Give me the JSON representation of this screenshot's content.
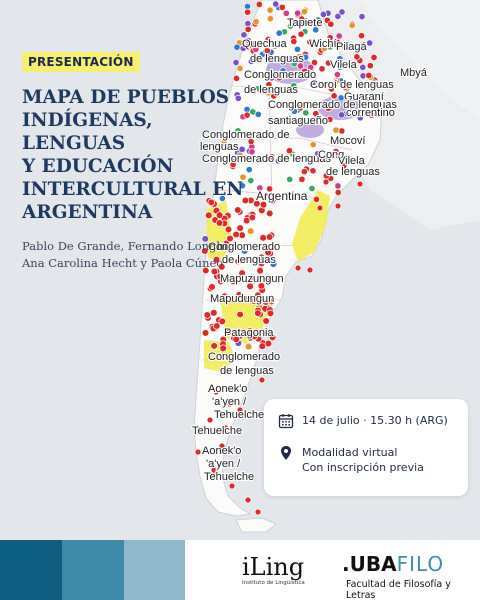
{
  "badge": "PRESENTACIÓN",
  "title_lines": [
    "MAPA DE PUEBLOS",
    "INDÍGENAS,",
    "LENGUAS",
    "Y EDUCACIÓN",
    "INTERCULTURAL EN",
    "ARGENTINA"
  ],
  "authors": "Pablo De Grande, Fernando Longhi, Ana Carolina Hecht y Paola Cúneo",
  "event": {
    "date": "14 de julio · 15.30 h (ARG)",
    "modality_line1": "Modalidad virtual",
    "modality_line2": "Con inscripción previa",
    "date_icon": "calendar-icon",
    "location_icon": "location-pin-icon"
  },
  "map_labels": [
    "Tapiete",
    "Quechua",
    "Wichí",
    "Pilagá",
    "Conglomerado de lenguas",
    "Vilela",
    "Mbyá",
    "Coroí de lenguas",
    "Guaraní",
    "Conglomerado de lenguas santiagueño",
    "correntino",
    "Mocoví",
    "Conglomerado de lenguas",
    "Conglomerado de lenguas",
    "Vilela",
    "de lenguas",
    "Argentina",
    "Conglomerado de lenguas",
    "Mapuzungun",
    "Mapudungun",
    "Patagonia",
    "Conglomerado de lenguas",
    "Aonek'o 'a'yen / Tehuelche",
    "Tehuelche",
    "Aonek'o 'a'yen / Tehuelche"
  ],
  "logos": {
    "iling_name": "iLing",
    "iling_sub": "Instituto de Lingüística",
    "uba_name": ".UBA",
    "uba_filo": "FILO",
    "uba_sub": "Facultad de Filosofía y Letras"
  },
  "colors": {
    "navy": "#1d3a63",
    "yellow": "#f6ef72",
    "band1": "#0d5e80",
    "band2": "#3d8aa8",
    "band3": "#8fb9cb",
    "marker_red": "#e02a2a"
  }
}
